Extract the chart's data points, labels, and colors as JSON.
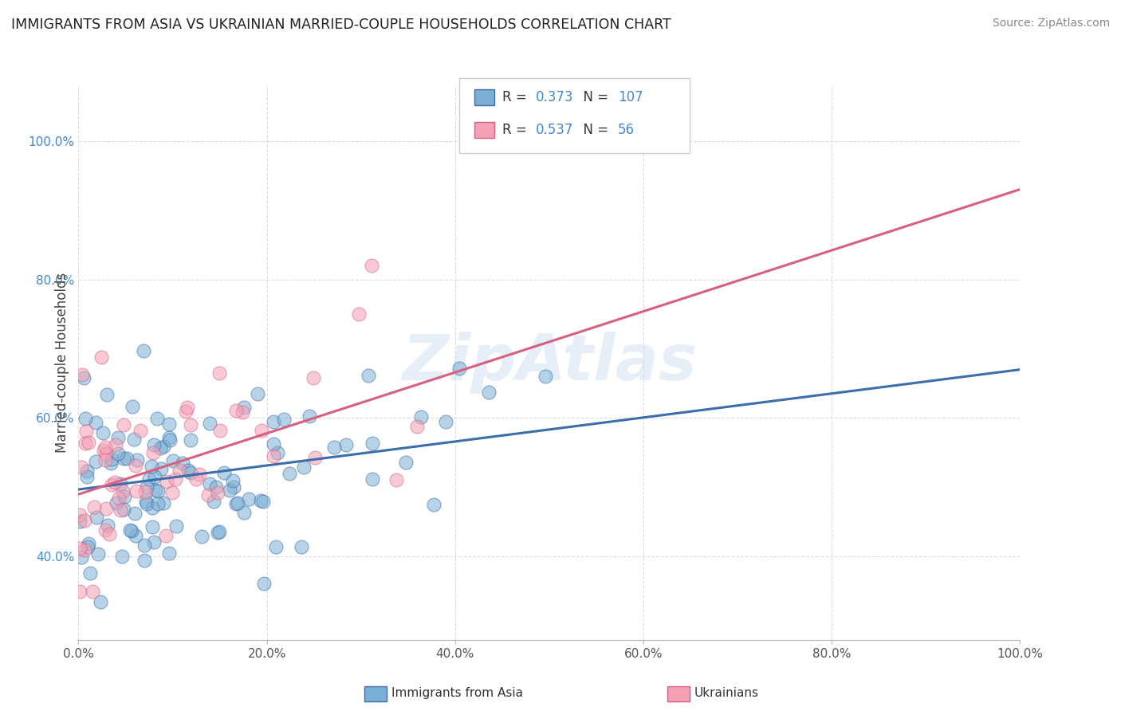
{
  "title": "IMMIGRANTS FROM ASIA VS UKRAINIAN MARRIED-COUPLE HOUSEHOLDS CORRELATION CHART",
  "source": "Source: ZipAtlas.com",
  "ylabel": "Married-couple Households",
  "legend_label_1": "Immigrants from Asia",
  "legend_label_2": "Ukrainians",
  "R1": 0.373,
  "N1": 107,
  "R2": 0.537,
  "N2": 56,
  "color1": "#7BAFD4",
  "color2": "#F4A0B5",
  "trendline_color1": "#3B6EAA",
  "trendline_color2": "#D95F7F",
  "xmin": 0.0,
  "xmax": 1.0,
  "ymin": 0.28,
  "ymax": 1.08,
  "yticks": [
    0.4,
    0.6,
    0.8,
    1.0
  ],
  "ytick_labels": [
    "40.0%",
    "60.0%",
    "80.0%",
    "100.0%"
  ],
  "xticks": [
    0.0,
    0.2,
    0.4,
    0.6,
    0.8,
    1.0
  ],
  "xtick_labels": [
    "0.0%",
    "20.0%",
    "40.0%",
    "60.0%",
    "80.0%",
    "100.0%"
  ],
  "watermark": "ZipAtlas",
  "grid_color": "#DDDDDD",
  "title_color": "#222222",
  "source_color": "#888888",
  "ytick_color": "#4488CC",
  "xtick_color": "#555555"
}
